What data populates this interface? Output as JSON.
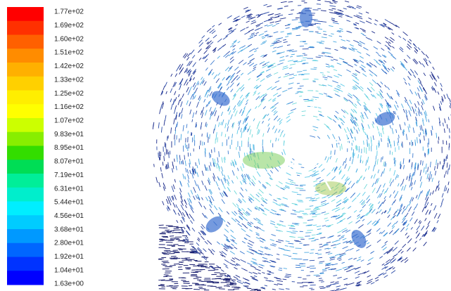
{
  "colorbar": {
    "labels": [
      "1.77e+02",
      "1.69e+02",
      "1.60e+02",
      "1.51e+02",
      "1.42e+02",
      "1.33e+02",
      "1.25e+02",
      "1.16e+02",
      "1.07e+02",
      "9.83e+01",
      "8.95e+01",
      "8.07e+01",
      "7.19e+01",
      "6.31e+01",
      "5.44e+01",
      "4.56e+01",
      "3.68e+01",
      "2.80e+01",
      "1.92e+01",
      "1.04e+01",
      "1.63e+00"
    ],
    "colors": [
      "#ff0000",
      "#ff3000",
      "#ff6000",
      "#ff8c00",
      "#ffb000",
      "#ffd000",
      "#ffee00",
      "#ffff00",
      "#ccff00",
      "#88ee00",
      "#33dd00",
      "#00dd55",
      "#00ee99",
      "#00eecc",
      "#00eeff",
      "#00ccff",
      "#0099ff",
      "#0066ff",
      "#0033ff",
      "#0000ff"
    ]
  }
}
